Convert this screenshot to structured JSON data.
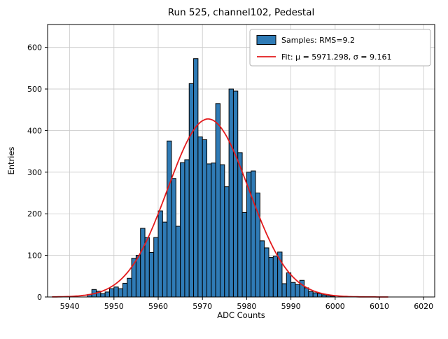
{
  "title": "Run 525, channel102, Pedestal",
  "colors": {
    "bar": "#2f7bb6",
    "bar_edge": "#000000",
    "fit": "#e31a1c",
    "grid": "#c9c9c9",
    "axis": "#000000",
    "legend_border": "#b3b3b3",
    "background": "#ffffff"
  },
  "chart_data": {
    "type": "bar",
    "title": "Run 525, channel102, Pedestal",
    "xlabel": "ADC Counts",
    "ylabel": "Entries",
    "xlim": [
      5935,
      6022.5
    ],
    "ylim": [
      0,
      655
    ],
    "xticks": [
      5940,
      5950,
      5960,
      5970,
      5980,
      5990,
      6000,
      6010,
      6020
    ],
    "yticks": [
      0,
      100,
      200,
      300,
      400,
      500,
      600
    ],
    "grid": true,
    "legend": {
      "position": "top-right",
      "entries": [
        {
          "label": "Samples: RMS=9.2",
          "marker": "patch",
          "color": "#2f7bb6"
        },
        {
          "label": "Fit: μ = 5971.298, σ = 9.161",
          "marker": "line",
          "color": "#e31a1c"
        }
      ]
    },
    "bin_start": 5944,
    "bin_width": 1,
    "counts": [
      6,
      18,
      14,
      8,
      12,
      20,
      24,
      20,
      33,
      45,
      93,
      100,
      165,
      143,
      107,
      143,
      207,
      180,
      375,
      285,
      170,
      323,
      330,
      513,
      573,
      385,
      378,
      320,
      322,
      465,
      318,
      265,
      500,
      495,
      347,
      203,
      300,
      303,
      250,
      135,
      118,
      95,
      98,
      108,
      32,
      58,
      35,
      30,
      40,
      22,
      13,
      10,
      8,
      5,
      3,
      2
    ],
    "fit": {
      "mu": 5971.298,
      "sigma": 9.161,
      "amplitude": 428
    }
  }
}
